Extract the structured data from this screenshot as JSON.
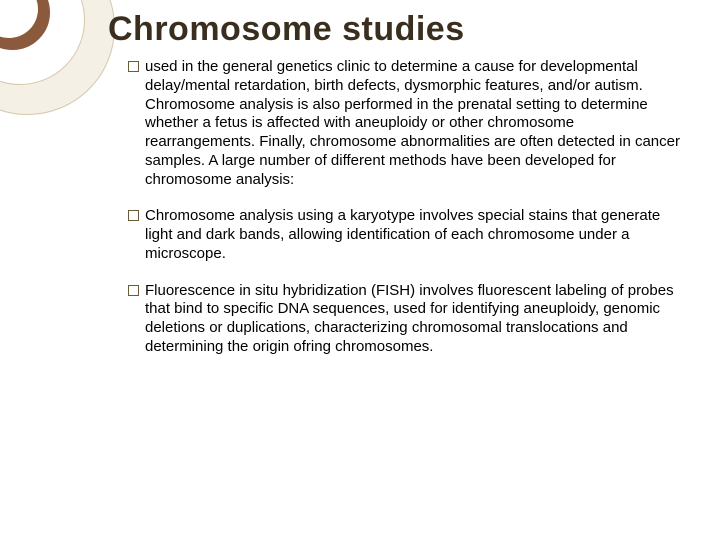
{
  "slide": {
    "title": "Chromosome studies",
    "title_color": "#3a2e1f",
    "title_fontsize": 34,
    "background_color": "#ffffff",
    "ornament": {
      "outer_fill": "#f5f0e6",
      "border_color": "#d4c9a8",
      "inner_ring_color": "#8b5a3c"
    },
    "body_fontsize": 15,
    "body_color": "#000000",
    "bullet_marker_color": "#6b5a3a",
    "bullets": [
      {
        "text": " used in the general genetics clinic to determine a cause for developmental delay/mental retardation, birth defects, dysmorphic features, and/or autism. Chromosome analysis is also performed in the prenatal setting to determine whether a fetus is affected with aneuploidy or other chromosome rearrangements. Finally, chromosome abnormalities are often detected in cancer samples. A large number of different methods have been developed for chromosome analysis:"
      },
      {
        "text": "Chromosome analysis using a karyotype involves special stains that generate light and dark bands, allowing identification of each chromosome under a microscope."
      },
      {
        "text": "Fluorescence in situ hybridization (FISH) involves fluorescent labeling of probes that bind to specific DNA sequences, used for identifying aneuploidy, genomic deletions or duplications, characterizing chromosomal translocations and determining the origin ofring chromosomes."
      }
    ]
  }
}
